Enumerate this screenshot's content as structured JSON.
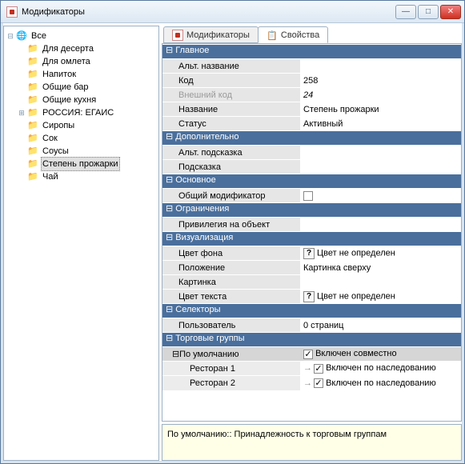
{
  "window": {
    "title": "Модификаторы"
  },
  "tree": {
    "root": "Все",
    "items": [
      {
        "label": "Для десерта",
        "icon": "folder-r"
      },
      {
        "label": "Для омлета",
        "icon": "folder-r"
      },
      {
        "label": "Напиток",
        "icon": "folder"
      },
      {
        "label": "Общие бар",
        "icon": "folder"
      },
      {
        "label": "Общие кухня",
        "icon": "folder"
      },
      {
        "label": "РОССИЯ: ЕГАИС",
        "icon": "folder-r",
        "expandable": true
      },
      {
        "label": "Сиропы",
        "icon": "folder-r"
      },
      {
        "label": "Сок",
        "icon": "folder-r"
      },
      {
        "label": "Соусы",
        "icon": "folder-r"
      },
      {
        "label": "Степень прожарки",
        "icon": "folder-r",
        "selected": true
      },
      {
        "label": "Чай",
        "icon": "folder-r"
      }
    ]
  },
  "tabs": {
    "items": [
      {
        "label": "Модификаторы",
        "active": false
      },
      {
        "label": "Свойства",
        "active": true
      }
    ]
  },
  "sections": {
    "main": {
      "title": "Главное"
    },
    "extra": {
      "title": "Дополнительно"
    },
    "base": {
      "title": "Основное"
    },
    "limits": {
      "title": "Ограничения"
    },
    "visual": {
      "title": "Визуализация"
    },
    "select": {
      "title": "Селекторы"
    },
    "trade": {
      "title": "Торговые группы"
    },
    "default": {
      "title": "По умолчанию"
    }
  },
  "props": {
    "alt_name": {
      "label": "Альт. название",
      "value": ""
    },
    "code": {
      "label": "Код",
      "value": "258"
    },
    "ext_code": {
      "label": "Внешний код",
      "value": "24",
      "disabled": true,
      "italic": true
    },
    "name": {
      "label": "Название",
      "value": "Степень прожарки"
    },
    "status": {
      "label": "Статус",
      "value": "Активный"
    },
    "alt_hint": {
      "label": "Альт. подсказка",
      "value": ""
    },
    "hint": {
      "label": "Подсказка",
      "value": ""
    },
    "common_mod": {
      "label": "Общий модификатор",
      "checked": false
    },
    "privilege": {
      "label": "Привилегия на объект",
      "value": ""
    },
    "bg_color": {
      "label": "Цвет фона",
      "value": "Цвет не определен"
    },
    "position": {
      "label": "Положение",
      "value": "Картинка сверху"
    },
    "picture": {
      "label": "Картинка",
      "value": ""
    },
    "text_color": {
      "label": "Цвет текста",
      "value": "Цвет не определен"
    },
    "user": {
      "label": "Пользователь",
      "value": "0 страниц"
    },
    "incl_joint": {
      "value": "Включен совместно"
    },
    "rest1": {
      "label": "Ресторан 1",
      "value": "Включен по наследованию"
    },
    "rest2": {
      "label": "Ресторан 2",
      "value": "Включен по наследованию"
    }
  },
  "hintbar": {
    "text": "По умолчанию:: Принадлежность к торговым группам"
  },
  "colors": {
    "section_bg": "#4a6f9c",
    "row_label_bg": "#e6e6e6",
    "hint_bg": "#ffffe8"
  }
}
